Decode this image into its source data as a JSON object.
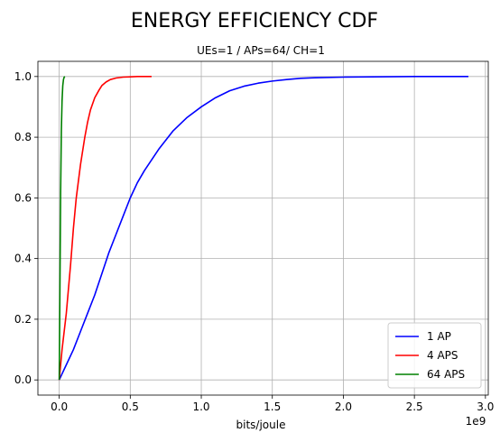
{
  "chart_data": {
    "type": "line",
    "title": "ENERGY EFFICIENCY CDF",
    "subtitle": "UEs=1 / APs=64/ CH=1",
    "xlabel": "bits/joule",
    "ylabel": "",
    "x_offset_label": "1e9",
    "xlim": [
      -0.15,
      3.02
    ],
    "ylim": [
      -0.05,
      1.05
    ],
    "x_ticks": [
      0.0,
      0.5,
      1.0,
      1.5,
      2.0,
      2.5,
      3.0
    ],
    "x_tick_labels": [
      "0.0",
      "0.5",
      "1.0",
      "1.5",
      "2.0",
      "2.5",
      "3.0"
    ],
    "y_ticks": [
      0.0,
      0.2,
      0.4,
      0.6,
      0.8,
      1.0
    ],
    "y_tick_labels": [
      "0.0",
      "0.2",
      "0.4",
      "0.6",
      "0.8",
      "1.0"
    ],
    "grid": true,
    "legend_position": "lower-right",
    "series": [
      {
        "name": "1 AP",
        "color": "#0000ff",
        "x": [
          0.0,
          0.05,
          0.1,
          0.15,
          0.2,
          0.25,
          0.3,
          0.35,
          0.4,
          0.45,
          0.5,
          0.55,
          0.6,
          0.7,
          0.8,
          0.9,
          1.0,
          1.1,
          1.2,
          1.3,
          1.4,
          1.5,
          1.6,
          1.7,
          1.8,
          2.0,
          2.2,
          2.5,
          2.88
        ],
        "y": [
          0.0,
          0.05,
          0.1,
          0.16,
          0.22,
          0.28,
          0.35,
          0.42,
          0.48,
          0.54,
          0.6,
          0.65,
          0.69,
          0.76,
          0.82,
          0.865,
          0.9,
          0.93,
          0.953,
          0.968,
          0.978,
          0.985,
          0.99,
          0.994,
          0.996,
          0.998,
          0.999,
          1.0,
          1.0
        ]
      },
      {
        "name": "4 APS",
        "color": "#ff0000",
        "x": [
          0.0,
          0.02,
          0.05,
          0.08,
          0.1,
          0.12,
          0.15,
          0.18,
          0.2,
          0.22,
          0.25,
          0.28,
          0.3,
          0.33,
          0.36,
          0.4,
          0.45,
          0.5,
          0.55,
          0.6,
          0.65
        ],
        "y": [
          0.0,
          0.1,
          0.22,
          0.38,
          0.5,
          0.6,
          0.71,
          0.8,
          0.85,
          0.89,
          0.93,
          0.955,
          0.97,
          0.982,
          0.99,
          0.995,
          0.998,
          0.999,
          1.0,
          1.0,
          1.0
        ]
      },
      {
        "name": "64 APS",
        "color": "#008000",
        "x": [
          0.0,
          0.005,
          0.01,
          0.015,
          0.02,
          0.025,
          0.03,
          0.035,
          0.04
        ],
        "y": [
          0.0,
          0.3,
          0.62,
          0.82,
          0.92,
          0.97,
          0.99,
          0.998,
          1.0
        ]
      }
    ]
  }
}
